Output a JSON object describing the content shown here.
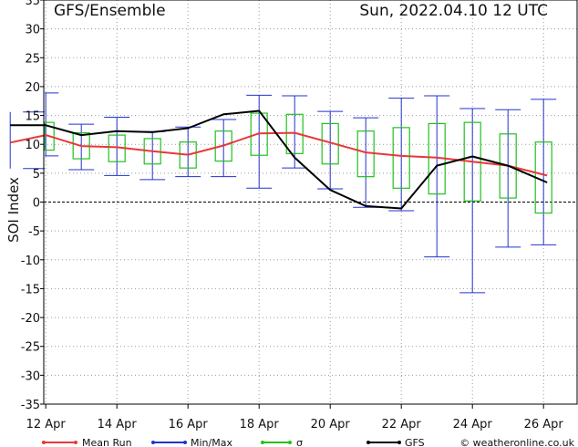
{
  "header": {
    "title": "GFS/Ensemble",
    "run": "Sun, 2022.04.10   12 UTC"
  },
  "footer": {
    "credit": "© weatheronline.co.uk"
  },
  "colors": {
    "mean": "#e8383a",
    "minmax": "#2233cc",
    "sigma": "#22c022",
    "gfs": "#000000",
    "grid": "#9a9a9a"
  },
  "chart_data": {
    "type": "line",
    "ylabel": "SOI Index",
    "ylim": [
      -35,
      35
    ],
    "yticks": [
      -35,
      -30,
      -25,
      -20,
      -15,
      -10,
      -5,
      0,
      5,
      10,
      15,
      20,
      25,
      30,
      35
    ],
    "xlim": [
      0,
      15.1
    ],
    "xticks": [
      {
        "x": 1,
        "label": "12 Apr"
      },
      {
        "x": 3,
        "label": "14 Apr"
      },
      {
        "x": 5,
        "label": "16 Apr"
      },
      {
        "x": 7,
        "label": "18 Apr"
      },
      {
        "x": 9,
        "label": "20 Apr"
      },
      {
        "x": 11,
        "label": "22 Apr"
      },
      {
        "x": 13,
        "label": "24 Apr"
      },
      {
        "x": 15,
        "label": "26 Apr"
      }
    ],
    "grid": true,
    "zero_line": true,
    "legend": [
      "Mean Run",
      "Min/Max",
      "σ",
      "GFS"
    ],
    "series": [
      {
        "name": "Mean Run",
        "x": [
          0,
          1,
          2,
          3,
          4,
          5,
          6,
          7,
          8,
          9,
          10,
          11,
          12,
          13,
          14,
          15.1
        ],
        "values": [
          10.3,
          11.6,
          9.7,
          9.5,
          8.8,
          8.2,
          9.8,
          11.9,
          12.0,
          10.3,
          8.6,
          8.0,
          7.7,
          7.0,
          6.3,
          4.6
        ]
      },
      {
        "name": "GFS",
        "x": [
          0,
          1,
          2,
          3,
          4,
          5,
          6,
          7,
          8,
          9,
          10,
          11,
          12,
          13,
          14,
          15.1
        ],
        "values": [
          13.3,
          13.3,
          11.6,
          12.3,
          12.1,
          12.8,
          15.2,
          15.8,
          7.7,
          2.1,
          -0.7,
          -1.1,
          6.3,
          7.9,
          6.3,
          3.4
        ]
      }
    ],
    "min_max": [
      {
        "x": 0,
        "min": 5.8,
        "max": 15.6
      },
      {
        "x": 1,
        "min": 8.0,
        "max": 18.9
      },
      {
        "x": 2,
        "min": 5.6,
        "max": 13.5
      },
      {
        "x": 3,
        "min": 4.6,
        "max": 14.7
      },
      {
        "x": 4,
        "min": 3.9,
        "max": 12.2
      },
      {
        "x": 5,
        "min": 4.4,
        "max": 13.0
      },
      {
        "x": 6,
        "min": 4.4,
        "max": 14.3
      },
      {
        "x": 7,
        "min": 2.4,
        "max": 18.5
      },
      {
        "x": 8,
        "min": 5.9,
        "max": 18.4
      },
      {
        "x": 9,
        "min": 2.3,
        "max": 15.7
      },
      {
        "x": 10,
        "min": -0.9,
        "max": 14.6
      },
      {
        "x": 11,
        "min": -1.5,
        "max": 18.0
      },
      {
        "x": 12,
        "min": -9.5,
        "max": 18.4
      },
      {
        "x": 13,
        "min": -15.7,
        "max": 16.2
      },
      {
        "x": 14,
        "min": -7.8,
        "max": 16.0
      },
      {
        "x": 15,
        "min": -7.4,
        "max": 17.8
      }
    ],
    "sigma": [
      {
        "x": 0,
        "low": 8.5,
        "high": 12.2
      },
      {
        "x": 1,
        "low": 9.0,
        "high": 13.8
      },
      {
        "x": 2,
        "low": 7.5,
        "high": 12.0
      },
      {
        "x": 3,
        "low": 7.0,
        "high": 11.6
      },
      {
        "x": 4,
        "low": 6.6,
        "high": 11.0
      },
      {
        "x": 5,
        "low": 5.9,
        "high": 10.4
      },
      {
        "x": 6,
        "low": 7.1,
        "high": 12.3
      },
      {
        "x": 7,
        "low": 8.1,
        "high": 15.4
      },
      {
        "x": 8,
        "low": 8.4,
        "high": 15.2
      },
      {
        "x": 9,
        "low": 6.6,
        "high": 13.6
      },
      {
        "x": 10,
        "low": 4.4,
        "high": 12.3
      },
      {
        "x": 11,
        "low": 2.4,
        "high": 12.9
      },
      {
        "x": 12,
        "low": 1.4,
        "high": 13.6
      },
      {
        "x": 13,
        "low": 0.2,
        "high": 13.8
      },
      {
        "x": 14,
        "low": 0.7,
        "high": 11.8
      },
      {
        "x": 15,
        "low": -1.9,
        "high": 10.4
      }
    ]
  }
}
